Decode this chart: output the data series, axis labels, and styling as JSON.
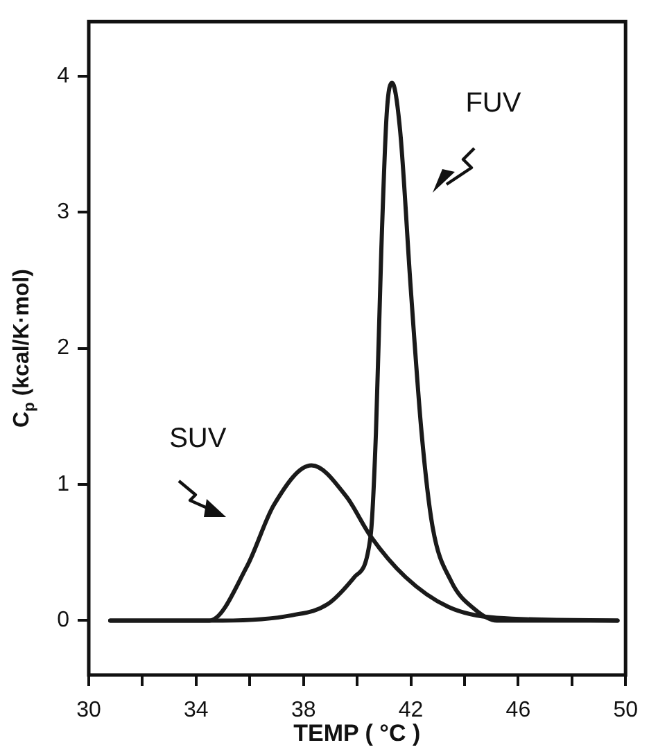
{
  "chart_data": {
    "type": "line",
    "xlabel": "TEMP ( °C )",
    "ylabel": "C$_{p}$ (kcal/K·mol)",
    "xlim": [
      30,
      50
    ],
    "xticks": [
      30,
      {
        "value": 32,
        "label": null
      },
      34,
      {
        "value": 36,
        "label": null
      },
      38,
      {
        "value": 40,
        "label": null
      },
      42,
      {
        "value": 44,
        "label": null
      },
      46,
      {
        "value": 48,
        "label": null
      },
      50
    ],
    "ylim": [
      -0.4,
      4.4
    ],
    "yticks": [
      0,
      1,
      2,
      3,
      4
    ],
    "grid": false,
    "legend": false,
    "marker": "none",
    "line_style": "solid",
    "series": [
      {
        "name": "SUV",
        "color": "#1a1a1a",
        "x": [
          30.8,
          34.5,
          35.9,
          36.9,
          38.3,
          39.6,
          40.5,
          41.8,
          43.4,
          45.2,
          49.7
        ],
        "values": [
          0,
          0,
          0.4,
          0.85,
          1.14,
          0.91,
          0.62,
          0.32,
          0.1,
          0.02,
          0
        ]
      },
      {
        "name": "FUV",
        "color": "#1a1a1a",
        "x": [
          30.8,
          35,
          37.6,
          38.9,
          39.9,
          40.5,
          40.7,
          40.9,
          41.1,
          41.3,
          41.6,
          42,
          42.4,
          42.8,
          43.5,
          44.4,
          45.2,
          49.7
        ],
        "values": [
          0,
          0,
          0.04,
          0.12,
          0.32,
          0.62,
          1.38,
          2.72,
          3.72,
          3.95,
          3.6,
          2.43,
          1.38,
          0.7,
          0.29,
          0.08,
          0,
          0
        ]
      }
    ]
  }
}
